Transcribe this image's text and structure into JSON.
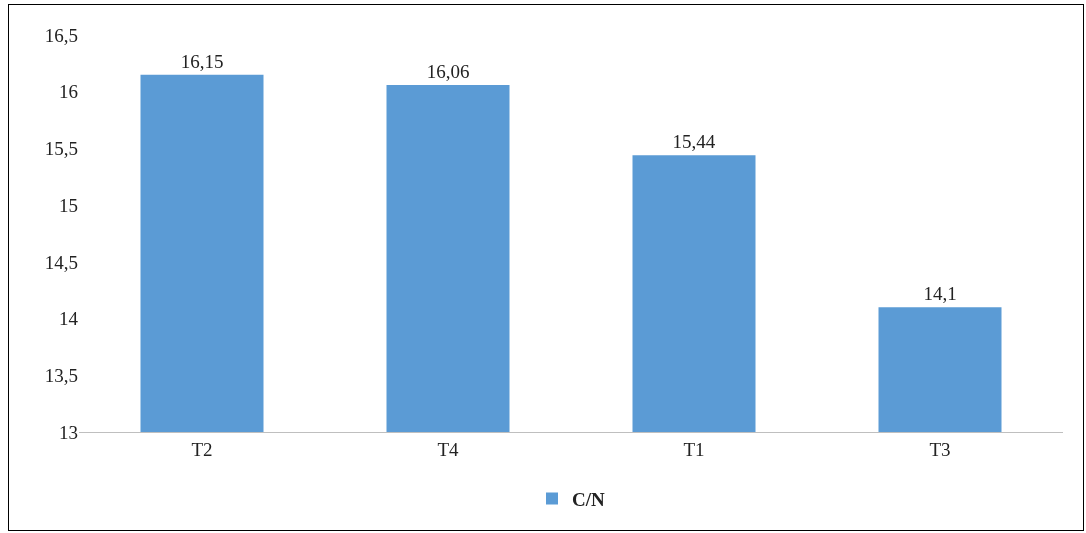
{
  "chart_data": {
    "type": "bar",
    "categories": [
      "T2",
      "T4",
      "T1",
      "T3"
    ],
    "series": [
      {
        "name": "C/N",
        "color": "#5b9bd5",
        "values": [
          16.15,
          16.06,
          15.44,
          14.1
        ],
        "value_labels": [
          "16,15",
          "16,06",
          "15,44",
          "14,1"
        ]
      }
    ],
    "ylim": [
      13,
      16.5
    ],
    "yticks": [
      13,
      {
        "value": 13.5,
        "label": "13,5"
      },
      14,
      {
        "value": 14.5,
        "label": "14,5"
      },
      15,
      {
        "value": 15.5,
        "label": "15,5"
      },
      16,
      {
        "value": 16.5,
        "label": "16,5"
      }
    ],
    "grid": false,
    "legend": "bottom"
  }
}
